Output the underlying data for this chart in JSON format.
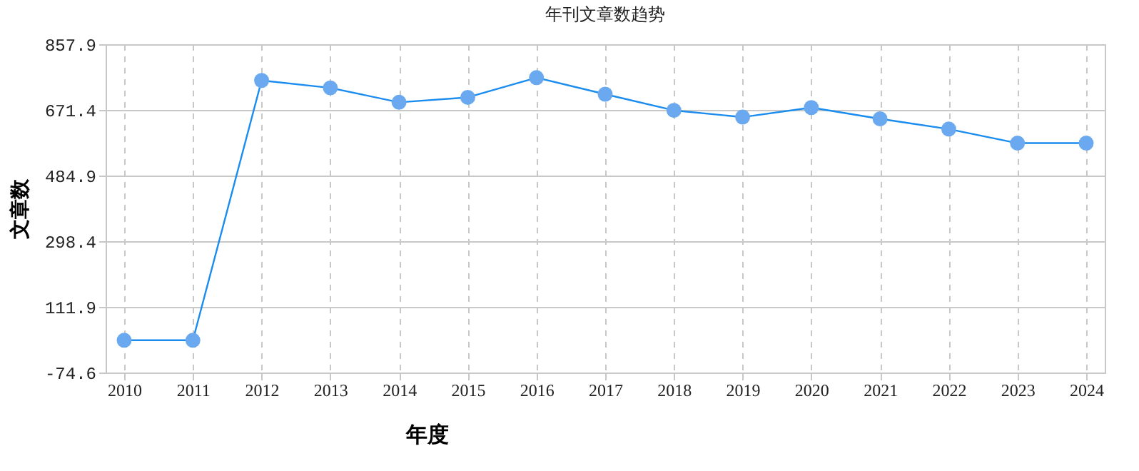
{
  "chart_data": {
    "type": "line",
    "title": "年刊文章数趋势",
    "xlabel": "年度",
    "ylabel": "文章数",
    "categories": [
      "2010",
      "2011",
      "2012",
      "2013",
      "2014",
      "2015",
      "2016",
      "2017",
      "2018",
      "2019",
      "2020",
      "2021",
      "2022",
      "2023",
      "2024"
    ],
    "series": [
      {
        "color": "#1a8cf0",
        "values": [
          17,
          17,
          755,
          734,
          693,
          707,
          763,
          716,
          670,
          651,
          678,
          646,
          617,
          577,
          577
        ]
      }
    ],
    "ylim": [
      -74.6,
      857.9
    ],
    "yticks": [
      -74.6,
      111.9,
      298.4,
      484.9,
      671.4,
      857.9
    ],
    "grid": true,
    "marker": "circle",
    "line_style": "solid"
  }
}
